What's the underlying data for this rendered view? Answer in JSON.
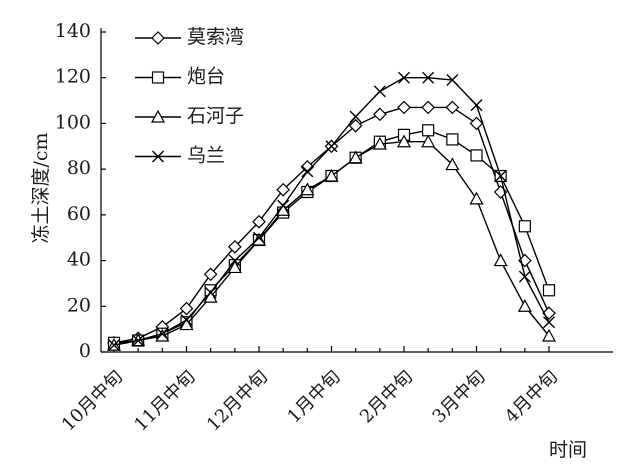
{
  "chart_data": {
    "type": "line",
    "xlabel": "时间",
    "ylabel": "冻土深度/cm",
    "ylim": [
      0,
      140
    ],
    "yticks": [
      0,
      20,
      40,
      60,
      80,
      100,
      120,
      140
    ],
    "categories": [
      "10月中旬",
      "11月中旬",
      "12月中旬",
      "1月中旬",
      "2月中旬",
      "3月中旬",
      "4月中旬"
    ],
    "grid": false,
    "legend_position": "top-left",
    "series": [
      {
        "name": "莫索湾",
        "marker": "diamond",
        "points": [
          [
            0.0,
            4
          ],
          [
            0.333,
            6
          ],
          [
            0.667,
            11
          ],
          [
            1.0,
            19
          ],
          [
            1.333,
            34
          ],
          [
            1.667,
            46
          ],
          [
            2.0,
            57
          ],
          [
            2.333,
            71
          ],
          [
            2.667,
            81
          ],
          [
            3.0,
            90
          ],
          [
            3.333,
            99
          ],
          [
            3.667,
            104
          ],
          [
            4.0,
            107
          ],
          [
            4.333,
            107
          ],
          [
            4.667,
            107
          ],
          [
            5.0,
            100
          ],
          [
            5.333,
            70
          ],
          [
            5.667,
            40
          ],
          [
            6.0,
            17
          ]
        ]
      },
      {
        "name": "炮台",
        "marker": "square",
        "points": [
          [
            0.0,
            4
          ],
          [
            0.333,
            5
          ],
          [
            0.667,
            8
          ],
          [
            1.0,
            13
          ],
          [
            1.333,
            27
          ],
          [
            1.667,
            38
          ],
          [
            2.0,
            49
          ],
          [
            2.333,
            61
          ],
          [
            2.667,
            70
          ],
          [
            3.0,
            77
          ],
          [
            3.333,
            85
          ],
          [
            3.667,
            92
          ],
          [
            4.0,
            95
          ],
          [
            4.333,
            97
          ],
          [
            4.667,
            93
          ],
          [
            5.0,
            86
          ],
          [
            5.333,
            77
          ],
          [
            5.667,
            55
          ],
          [
            6.0,
            27
          ]
        ]
      },
      {
        "name": "石河子",
        "marker": "triangle",
        "points": [
          [
            0.0,
            3
          ],
          [
            0.333,
            5
          ],
          [
            0.667,
            7
          ],
          [
            1.0,
            12
          ],
          [
            1.333,
            24
          ],
          [
            1.667,
            37
          ],
          [
            2.0,
            49
          ],
          [
            2.333,
            62
          ],
          [
            2.667,
            71
          ],
          [
            3.0,
            77
          ],
          [
            3.333,
            85
          ],
          [
            3.667,
            91
          ],
          [
            4.0,
            92
          ],
          [
            4.333,
            92
          ],
          [
            4.667,
            82
          ],
          [
            5.0,
            67
          ],
          [
            5.333,
            40
          ],
          [
            5.667,
            20
          ],
          [
            6.0,
            7
          ]
        ]
      },
      {
        "name": "乌兰",
        "marker": "x",
        "points": [
          [
            0.0,
            3
          ],
          [
            0.333,
            5
          ],
          [
            0.667,
            8
          ],
          [
            1.0,
            14
          ],
          [
            1.333,
            26
          ],
          [
            1.667,
            40
          ],
          [
            2.0,
            50
          ],
          [
            2.333,
            64
          ],
          [
            2.667,
            79
          ],
          [
            3.0,
            90
          ],
          [
            3.333,
            103
          ],
          [
            3.667,
            114
          ],
          [
            4.0,
            120
          ],
          [
            4.333,
            120
          ],
          [
            4.667,
            119
          ],
          [
            5.0,
            108
          ],
          [
            5.333,
            77
          ],
          [
            5.667,
            33
          ],
          [
            6.0,
            13
          ]
        ]
      }
    ]
  }
}
